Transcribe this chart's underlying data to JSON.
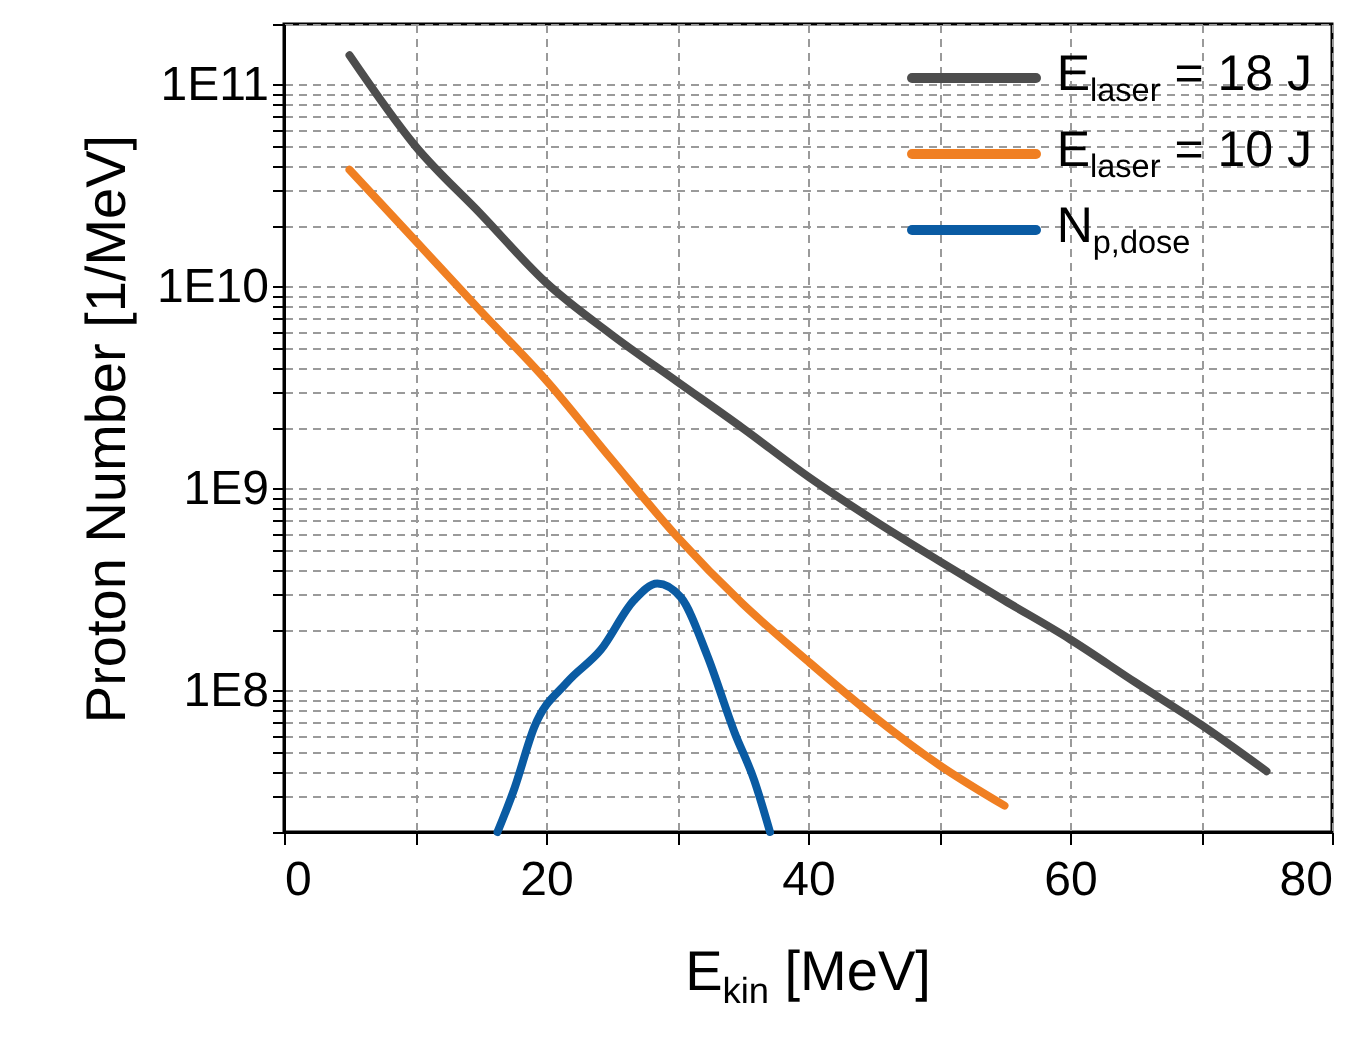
{
  "chart_data": {
    "type": "line",
    "xlabel": "E$_{kin}$ [MeV]",
    "ylabel": "Proton Number [1/MeV]",
    "log": "y",
    "grid": true,
    "legend": "top right",
    "xlim": [
      0,
      80
    ],
    "xticks": [
      0,
      {
        "value": 10,
        "label": null
      },
      20,
      {
        "value": 30,
        "label": null
      },
      40,
      {
        "value": 50,
        "label": null
      },
      60,
      {
        "value": 70,
        "label": null
      },
      80
    ],
    "ylim": [
      20000000,
      200000000000
    ],
    "yticks": [
      {
        "value": 20000000,
        "label": null
      },
      {
        "value": 30000000,
        "label": null
      },
      {
        "value": 40000000,
        "label": null
      },
      {
        "value": 50000000,
        "label": null
      },
      {
        "value": 60000000,
        "label": null
      },
      {
        "value": 70000000,
        "label": null
      },
      {
        "value": 80000000,
        "label": null
      },
      {
        "value": 90000000,
        "label": null
      },
      {
        "value": 100000000,
        "label": "1E8"
      },
      {
        "value": 200000000,
        "label": null
      },
      {
        "value": 300000000,
        "label": null
      },
      {
        "value": 400000000,
        "label": null
      },
      {
        "value": 500000000,
        "label": null
      },
      {
        "value": 600000000,
        "label": null
      },
      {
        "value": 700000000,
        "label": null
      },
      {
        "value": 800000000,
        "label": null
      },
      {
        "value": 900000000,
        "label": null
      },
      {
        "value": 1000000000,
        "label": "1E9"
      },
      {
        "value": 2000000000,
        "label": null
      },
      {
        "value": 3000000000,
        "label": null
      },
      {
        "value": 4000000000,
        "label": null
      },
      {
        "value": 5000000000,
        "label": null
      },
      {
        "value": 6000000000,
        "label": null
      },
      {
        "value": 7000000000,
        "label": null
      },
      {
        "value": 8000000000,
        "label": null
      },
      {
        "value": 9000000000,
        "label": null
      },
      {
        "value": 10000000000,
        "label": "1E10"
      },
      {
        "value": 20000000000,
        "label": null
      },
      {
        "value": 30000000000,
        "label": null
      },
      {
        "value": 40000000000,
        "label": null
      },
      {
        "value": 50000000000,
        "label": null
      },
      {
        "value": 60000000000,
        "label": null
      },
      {
        "value": 70000000000,
        "label": null
      },
      {
        "value": 80000000000,
        "label": null
      },
      {
        "value": 90000000000,
        "label": null
      },
      {
        "value": 100000000000,
        "label": "1E11"
      },
      {
        "value": 200000000000,
        "label": null
      }
    ],
    "series": [
      {
        "name": "E$_{laser}$ = 18 J",
        "color": "#4d4d4d",
        "x": [
          5,
          10,
          15,
          20,
          25,
          30,
          35,
          40,
          45,
          50,
          55,
          60,
          65,
          70,
          75
        ],
        "values": [
          140000000000,
          50000000000,
          23000000000,
          10500000000,
          5800000000,
          3400000000,
          2000000000,
          1150000000,
          700000000,
          440000000,
          280000000,
          180000000,
          110000000,
          68000000,
          40000000
        ]
      },
      {
        "name": "E$_{laser}$ = 10 J",
        "color": "#f07f22",
        "x": [
          5,
          10,
          15,
          20,
          25,
          30,
          35,
          40,
          45,
          50,
          55
        ],
        "values": [
          38000000000,
          17000000000,
          7600000000,
          3450000000,
          1400000000,
          580000000,
          270000000,
          140000000,
          75000000,
          43000000,
          27000000
        ]
      },
      {
        "name": "N$_{p,dose}$",
        "color": "#0a5ba3",
        "x": [
          16.3,
          17.6,
          19.1,
          21.6,
          24.2,
          26.7,
          28.5,
          30.3,
          32.3,
          34.4,
          35.9,
          37.1
        ],
        "values": [
          20000000,
          33000000,
          66000000,
          110000000,
          160000000,
          280000000,
          340000000,
          290000000,
          150000000,
          62000000,
          36000000,
          20000000
        ]
      }
    ]
  }
}
